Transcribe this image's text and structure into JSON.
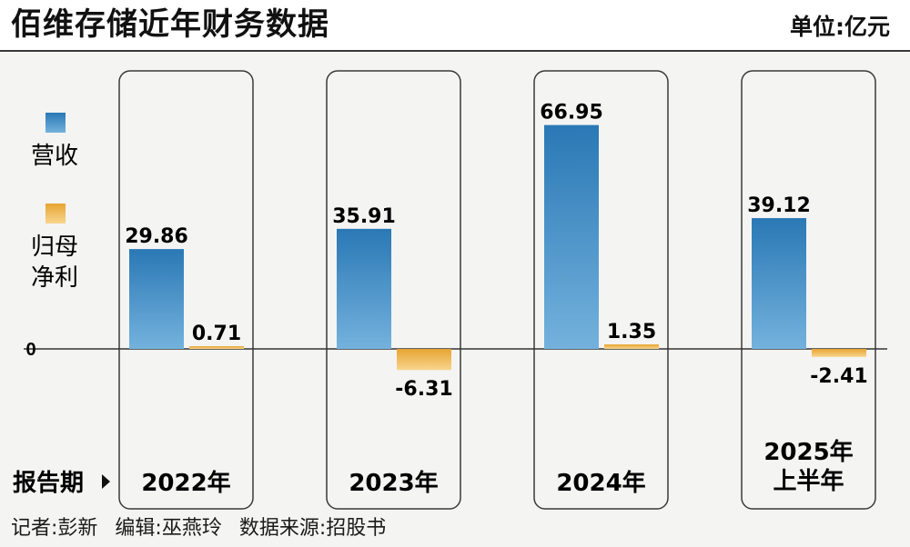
{
  "header": {
    "title": "佰维存储近年财务数据",
    "unit": "单位:亿元"
  },
  "legend": {
    "revenue_label": "营收",
    "profit_label_line1": "归母",
    "profit_label_line2": "净利"
  },
  "period_label": "报告期",
  "footer": {
    "reporter": "记者:彭新",
    "editor": "编辑:巫燕玲",
    "source": "数据来源:招股书"
  },
  "colors": {
    "revenue_top": "#2a78b5",
    "revenue_bottom": "#74b2dd",
    "profit_top": "#e7a431",
    "profit_bottom": "#f8d58e",
    "panel_border": "#3a3a3a"
  },
  "chart_data": {
    "type": "bar",
    "categories": [
      "2022年",
      "2023年",
      "2024年",
      "2025年\n上半年"
    ],
    "series": [
      {
        "name": "营收",
        "values": [
          29.86,
          35.91,
          66.95,
          39.12
        ]
      },
      {
        "name": "归母净利",
        "values": [
          0.71,
          -6.31,
          1.35,
          -2.41
        ]
      }
    ],
    "value_labels": [
      [
        "29.86",
        "35.91",
        "66.95",
        "39.12"
      ],
      [
        "0.71",
        "-6.31",
        "1.35",
        "-2.41"
      ]
    ],
    "zero_label": "0",
    "title": "佰维存储近年财务数据",
    "ylabel": "单位:亿元",
    "legend_position": "left",
    "grid": false
  }
}
